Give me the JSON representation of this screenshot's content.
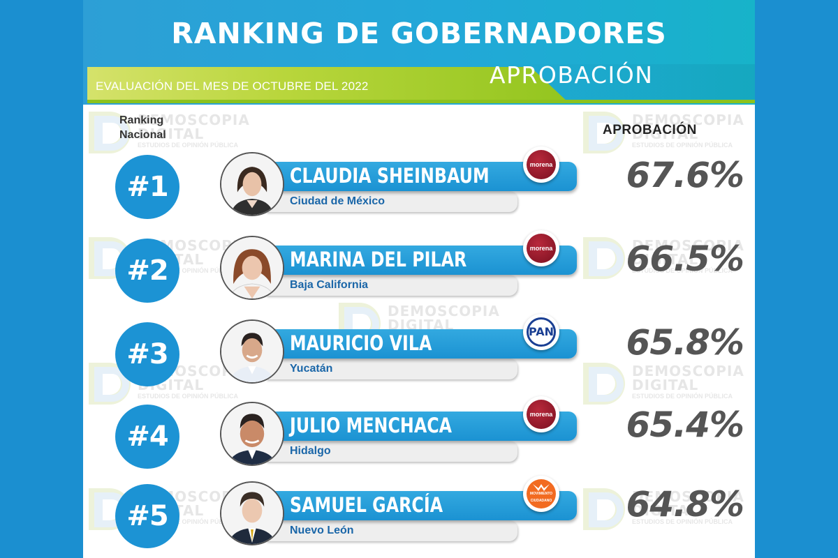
{
  "header": {
    "title": "RANKING DE GOBERNADORES",
    "subtitle": "EVALUACIÓN DEL MES DE OCTUBRE DEL 2022",
    "approval": "APROBACIÓN"
  },
  "columns": {
    "rank_line1": "Ranking",
    "rank_line2": "Nacional",
    "approval": "APROBACIÓN"
  },
  "watermark": {
    "line1": "DEMOSCOPIA",
    "line2": "DIGITAL",
    "line3": "ESTUDIOS DE OPINIÓN PÚBLICA"
  },
  "rows": [
    {
      "rank": "#1",
      "name": "CLAUDIA SHEINBAUM",
      "state": "Ciudad de México",
      "party": "morena",
      "approval": "67.6%"
    },
    {
      "rank": "#2",
      "name": "MARINA DEL PILAR",
      "state": "Baja California",
      "party": "morena",
      "approval": "66.5%"
    },
    {
      "rank": "#3",
      "name": "MAURICIO VILA",
      "state": "Yucatán",
      "party": "PAN",
      "approval": "65.8%"
    },
    {
      "rank": "#4",
      "name": "JULIO MENCHACA",
      "state": "Hidalgo",
      "party": "morena",
      "approval": "65.4%"
    },
    {
      "rank": "#5",
      "name": "SAMUEL GARCÍA",
      "state": "Nuevo León",
      "party": "MOVIMIENTO CIUDADANO",
      "approval": "64.8%"
    }
  ],
  "colors": {
    "background": "#1b8fd0",
    "header_blue": "#22a8d8",
    "green": "#8cc21d",
    "rank_circle": "#1c93d4",
    "state_text": "#1a66a8",
    "percent_text": "#555555",
    "morena": "#8b1a2b",
    "pan": "#1a3f93",
    "movimiento_ciudadano": "#f26b21"
  }
}
